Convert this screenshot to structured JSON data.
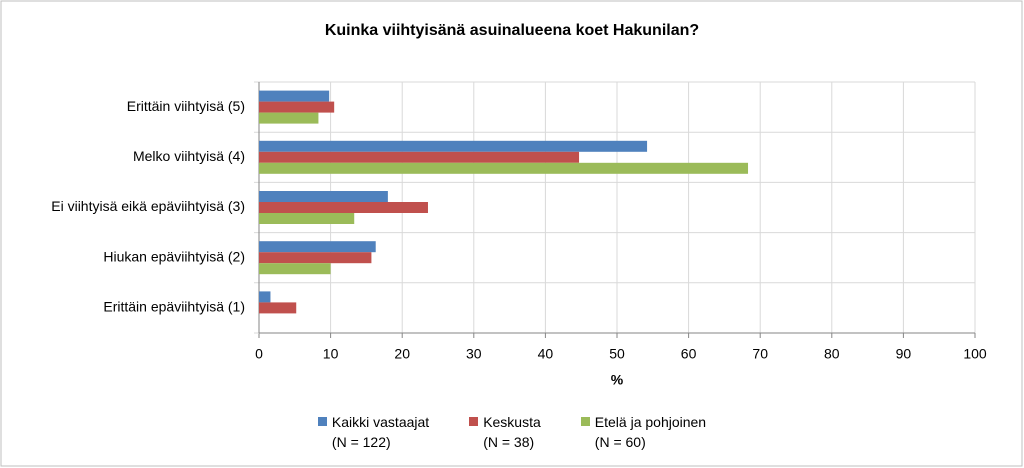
{
  "chart_data": {
    "type": "bar",
    "orientation": "horizontal",
    "title": "Kuinka viihtyisänä asuinalueena koet Hakunilan?",
    "x_label": "%",
    "categories": [
      "Erittäin viihtyisä (5)",
      "Melko viihtyisä (4)",
      "Ei viihtyisä eikä epäviihtyisä (3)",
      "Hiukan epäviihtyisä (2)",
      "Erittäin epäviihtyisä (1)"
    ],
    "series": [
      {
        "name": "Kaikki vastaajat\n(N = 122)",
        "color": "#4f81bd",
        "values": [
          9.8,
          54.2,
          18.0,
          16.3,
          1.6
        ]
      },
      {
        "name": "Keskusta\n(N = 38)",
        "color": "#c0504d",
        "values": [
          10.5,
          44.7,
          23.6,
          15.7,
          5.2
        ]
      },
      {
        "name": "Etelä ja pohjoinen\n(N = 60)",
        "color": "#9bbb59",
        "values": [
          8.3,
          68.3,
          13.3,
          10.0,
          0
        ]
      }
    ],
    "xlim": [
      0,
      100
    ],
    "xticks": [
      0,
      10,
      20,
      30,
      40,
      50,
      60,
      70,
      80,
      90,
      100
    ],
    "grid": true,
    "legend": "bottom"
  }
}
